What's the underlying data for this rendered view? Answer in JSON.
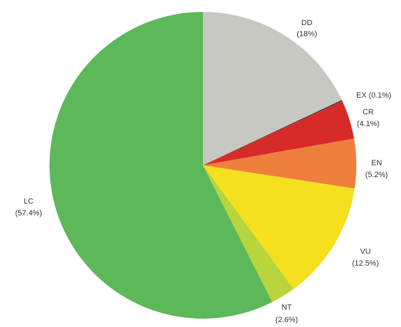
{
  "chart_data": {
    "type": "pie",
    "title": "",
    "slices": [
      {
        "category": "DD",
        "label": "DD",
        "pct_text": "(18%)",
        "value": 18.0,
        "color": "#c8c8c3"
      },
      {
        "category": "EX",
        "label": "EX (0.1%)",
        "pct_text": "",
        "value": 0.1,
        "color": "#2b2b2b"
      },
      {
        "category": "CR",
        "label": "CR",
        "pct_text": "(4.1%)",
        "value": 4.1,
        "color": "#d62b28"
      },
      {
        "category": "EN",
        "label": "EN",
        "pct_text": "(5.2%)",
        "value": 5.2,
        "color": "#ee7f3c"
      },
      {
        "category": "VU",
        "label": "VU",
        "pct_text": "(12.5%)",
        "value": 12.5,
        "color": "#f4e01e"
      },
      {
        "category": "NT",
        "label": "NT",
        "pct_text": "(2.6%)",
        "value": 2.6,
        "color": "#b8d53b"
      },
      {
        "category": "LC",
        "label": "LC",
        "pct_text": "(57.4%)",
        "value": 57.4,
        "color": "#5db85a"
      }
    ],
    "start": "12 o'clock",
    "direction": "clockwise"
  }
}
